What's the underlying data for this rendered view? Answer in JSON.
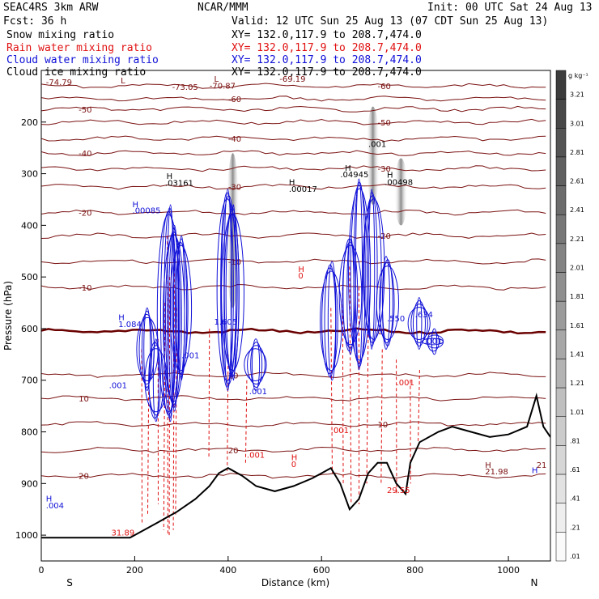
{
  "header": {
    "model": "SEAC4RS  3km ARW",
    "center": "NCAR/MMM",
    "init": "Init: 00 UTC Sat 24 Aug 13",
    "fcst": "Fcst:   36 h",
    "valid": "Valid: 12 UTC Sun 25 Aug 13 (07 CDT Sun 25 Aug 13)"
  },
  "fields": [
    {
      "name": "Snow mixing ratio",
      "xy": "XY= 132.0,117.9 to 208.7,474.0",
      "color": "#000000"
    },
    {
      "name": "Rain water mixing ratio",
      "xy": "XY= 132.0,117.9 to 208.7,474.0",
      "color": "#e01010"
    },
    {
      "name": "Cloud water mixing ratio",
      "xy": "XY= 132.0,117.9 to 208.7,474.0",
      "color": "#1010d8"
    },
    {
      "name": "Cloud ice mixing ratio",
      "xy": "XY= 132.0,117.9 to 208.7,474.0",
      "color": "#000000"
    }
  ],
  "colors": {
    "temperature": "#7a1010",
    "rain": "#e01010",
    "cloud_water": "#1010d8",
    "terrain": "#000000",
    "freezing": "#6a0000"
  },
  "chart_data": {
    "type": "cross-section",
    "xlabel": "Distance (km)",
    "ylabel": "Pressure (hPa)",
    "xlim": [
      0,
      1090
    ],
    "ylim": [
      1050,
      100
    ],
    "x_ticks": [
      0,
      200,
      400,
      600,
      800,
      1000
    ],
    "y_ticks": [
      1000,
      900,
      800,
      700,
      600,
      500,
      400,
      300,
      200
    ],
    "x_ends": {
      "left": "S",
      "right": "N"
    },
    "colorbar": {
      "unit": "g kg⁻¹",
      "levels": [
        "3.21",
        "3.01",
        "2.81",
        "2.61",
        "2.41",
        "2.21",
        "2.01",
        "1.81",
        "1.61",
        "1.41",
        "1.21",
        "1.01",
        ".81",
        ".61",
        ".41",
        ".21",
        ".01"
      ]
    },
    "isotherms": [
      {
        "t": 20,
        "p": 885
      },
      {
        "t": 20,
        "p": 835
      },
      {
        "t": 10,
        "p": 785
      },
      {
        "t": 10,
        "p": 735
      },
      {
        "t": 10,
        "p": 690
      },
      {
        "t": 0,
        "p": 605
      },
      {
        "t": -10,
        "p": 520
      },
      {
        "t": -10,
        "p": 470
      },
      {
        "t": -20,
        "p": 420
      },
      {
        "t": -20,
        "p": 375
      },
      {
        "t": -30,
        "p": 325
      },
      {
        "t": -30,
        "p": 290
      },
      {
        "t": -40,
        "p": 260
      },
      {
        "t": -40,
        "p": 232
      },
      {
        "t": -50,
        "p": 200
      },
      {
        "t": -50,
        "p": 175
      },
      {
        "t": -60,
        "p": 155
      },
      {
        "t": -60,
        "p": 130
      }
    ],
    "terrain": [
      [
        0,
        1005
      ],
      [
        100,
        1005
      ],
      [
        190,
        1005
      ],
      [
        220,
        990
      ],
      [
        250,
        975
      ],
      [
        270,
        965
      ],
      [
        290,
        955
      ],
      [
        330,
        930
      ],
      [
        360,
        905
      ],
      [
        380,
        880
      ],
      [
        400,
        870
      ],
      [
        430,
        885
      ],
      [
        460,
        905
      ],
      [
        500,
        915
      ],
      [
        540,
        905
      ],
      [
        580,
        890
      ],
      [
        600,
        880
      ],
      [
        620,
        870
      ],
      [
        640,
        900
      ],
      [
        660,
        950
      ],
      [
        680,
        930
      ],
      [
        700,
        880
      ],
      [
        720,
        860
      ],
      [
        740,
        860
      ],
      [
        760,
        900
      ],
      [
        780,
        920
      ],
      [
        790,
        860
      ],
      [
        810,
        820
      ],
      [
        850,
        800
      ],
      [
        880,
        790
      ],
      [
        920,
        800
      ],
      [
        960,
        810
      ],
      [
        1000,
        805
      ],
      [
        1040,
        790
      ],
      [
        1060,
        730
      ],
      [
        1075,
        790
      ],
      [
        1090,
        810
      ]
    ],
    "annotations": [
      {
        "x": 10,
        "p": 128,
        "text": "-74.79",
        "color": "#7a1010"
      },
      {
        "x": 280,
        "p": 138,
        "text": "-73.05",
        "color": "#7a1010"
      },
      {
        "x": 360,
        "p": 135,
        "text": "-70.87",
        "color": "#7a1010"
      },
      {
        "x": 510,
        "p": 122,
        "text": "-69.19",
        "color": "#7a1010"
      },
      {
        "x": 170,
        "p": 125,
        "text": "L",
        "color": "#7a1010"
      },
      {
        "x": 370,
        "p": 122,
        "text": "L",
        "color": "#7a1010"
      },
      {
        "x": 195,
        "p": 365,
        "text": "H",
        "color": "#1010d8"
      },
      {
        "x": 195,
        "p": 377,
        "text": ".00085",
        "color": "#1010d8"
      },
      {
        "x": 268,
        "p": 310,
        "text": "H",
        "color": "#000000"
      },
      {
        "x": 265,
        "p": 323,
        "text": ".03161",
        "color": "#000000"
      },
      {
        "x": 530,
        "p": 322,
        "text": "H",
        "color": "#000000"
      },
      {
        "x": 530,
        "p": 335,
        "text": ".00017",
        "color": "#000000"
      },
      {
        "x": 650,
        "p": 294,
        "text": "H",
        "color": "#000000"
      },
      {
        "x": 640,
        "p": 307,
        "text": ".04945",
        "color": "#000000"
      },
      {
        "x": 740,
        "p": 308,
        "text": "H",
        "color": "#000000"
      },
      {
        "x": 735,
        "p": 322,
        "text": ".00498",
        "color": "#000000"
      },
      {
        "x": 700,
        "p": 248,
        "text": ".001",
        "color": "#000000"
      },
      {
        "x": 550,
        "p": 490,
        "text": "H",
        "color": "#e01010"
      },
      {
        "x": 550,
        "p": 503,
        "text": "0",
        "color": "#e01010"
      },
      {
        "x": 535,
        "p": 855,
        "text": "H",
        "color": "#e01010"
      },
      {
        "x": 535,
        "p": 868,
        "text": "0",
        "color": "#e01010"
      },
      {
        "x": 165,
        "p": 584,
        "text": "H",
        "color": "#1010d8"
      },
      {
        "x": 165,
        "p": 597,
        "text": "1.084",
        "color": "#1010d8"
      },
      {
        "x": 370,
        "p": 592,
        "text": "1.605",
        "color": "#1010d8"
      },
      {
        "x": 740,
        "p": 586,
        "text": ".550",
        "color": "#1010d8"
      },
      {
        "x": 800,
        "p": 578,
        "text": ".634",
        "color": "#1010d8"
      },
      {
        "x": 150,
        "p": 1001,
        "text": "31.89",
        "color": "#e01010"
      },
      {
        "x": 740,
        "p": 918,
        "text": "29.55",
        "color": "#e01010"
      },
      {
        "x": 950,
        "p": 870,
        "text": "H",
        "color": "#7a1010"
      },
      {
        "x": 950,
        "p": 882,
        "text": "21.98",
        "color": "#7a1010"
      },
      {
        "x": 1050,
        "p": 880,
        "text": "H",
        "color": "#1010d8"
      },
      {
        "x": 1060,
        "p": 870,
        "text": "21",
        "color": "#7a1010"
      },
      {
        "x": 10,
        "p": 935,
        "text": "H",
        "color": "#1010d8"
      },
      {
        "x": 10,
        "p": 948,
        "text": ".004",
        "color": "#1010d8"
      },
      {
        "x": 145,
        "p": 715,
        "text": ".001",
        "color": "#1010d8"
      },
      {
        "x": 300,
        "p": 657,
        "text": ".001",
        "color": "#1010d8"
      },
      {
        "x": 445,
        "p": 727,
        "text": ".001",
        "color": "#1010d8"
      },
      {
        "x": 620,
        "p": 802,
        "text": ".001",
        "color": "#e01010"
      },
      {
        "x": 440,
        "p": 850,
        "text": ".001",
        "color": "#e01010"
      },
      {
        "x": 760,
        "p": 710,
        "text": ".001",
        "color": "#e01010"
      },
      {
        "x": 820,
        "p": 630,
        "text": ".001",
        "color": "#1010d8"
      }
    ]
  }
}
